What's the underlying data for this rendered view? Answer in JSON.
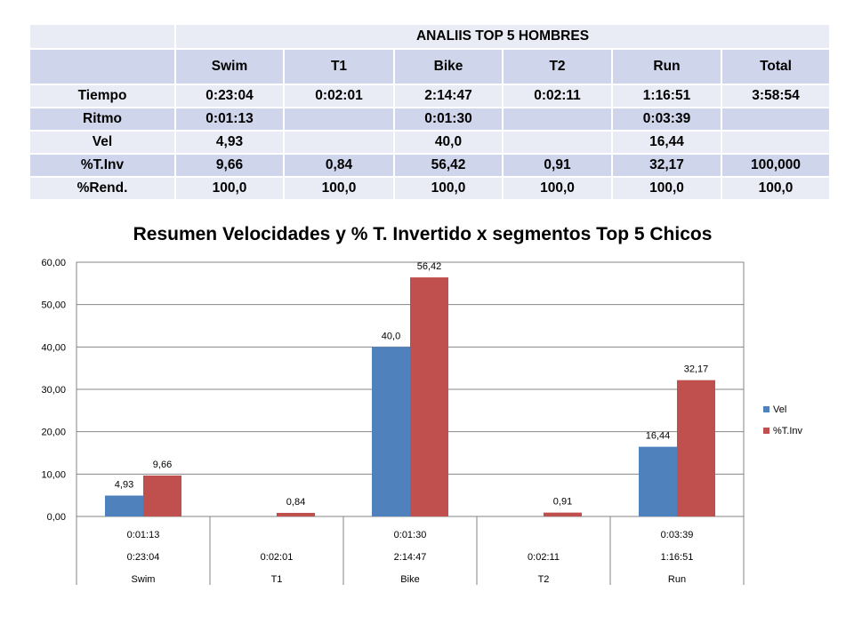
{
  "table": {
    "title": "ANALIIS TOP 5 HOMBRES",
    "headers": [
      "Swim",
      "T1",
      "Bike",
      "T2",
      "Run",
      "Total"
    ],
    "rows": [
      {
        "label": "Tiempo",
        "cells": [
          "0:23:04",
          "0:02:01",
          "2:14:47",
          "0:02:11",
          "1:16:51",
          "3:58:54"
        ]
      },
      {
        "label": "Ritmo",
        "cells": [
          "0:01:13",
          "",
          "0:01:30",
          "",
          "0:03:39",
          ""
        ]
      },
      {
        "label": "Vel",
        "cells": [
          "4,93",
          "",
          "40,0",
          "",
          "16,44",
          ""
        ]
      },
      {
        "label": "%T.Inv",
        "cells": [
          "9,66",
          "0,84",
          "56,42",
          "0,91",
          "32,17",
          "100,000"
        ]
      },
      {
        "label": "%Rend.",
        "cells": [
          "100,0",
          "100,0",
          "100,0",
          "100,0",
          "100,0",
          "100,0"
        ]
      }
    ]
  },
  "chart_data": {
    "type": "bar",
    "title": "Resumen Velocidades y % T. Invertido x segmentos Top 5 Chicos",
    "categories": [
      "Swim",
      "T1",
      "Bike",
      "T2",
      "Run"
    ],
    "category_rows": [
      [
        "0:01:13",
        "",
        "0:01:30",
        "",
        "0:03:39"
      ],
      [
        "0:23:04",
        "0:02:01",
        "2:14:47",
        "0:02:11",
        "1:16:51"
      ],
      [
        "Swim",
        "T1",
        "Bike",
        "T2",
        "Run"
      ]
    ],
    "series": [
      {
        "name": "Vel",
        "color": "#4f81bd",
        "values": [
          4.93,
          null,
          40.0,
          null,
          16.44
        ],
        "labels": [
          "4,93",
          "",
          "40,0",
          "",
          "16,44"
        ]
      },
      {
        "name": "%T.Inv",
        "color": "#c0504d",
        "values": [
          9.66,
          0.84,
          56.42,
          0.91,
          32.17
        ],
        "labels": [
          "9,66",
          "0,84",
          "56,42",
          "0,91",
          "32,17"
        ]
      }
    ],
    "ylim": [
      0,
      60
    ],
    "yticks": [
      "0,00",
      "10,00",
      "20,00",
      "30,00",
      "40,00",
      "50,00",
      "60,00"
    ],
    "ytick_values": [
      0,
      10,
      20,
      30,
      40,
      50,
      60
    ],
    "grid": true,
    "legend": "right"
  }
}
